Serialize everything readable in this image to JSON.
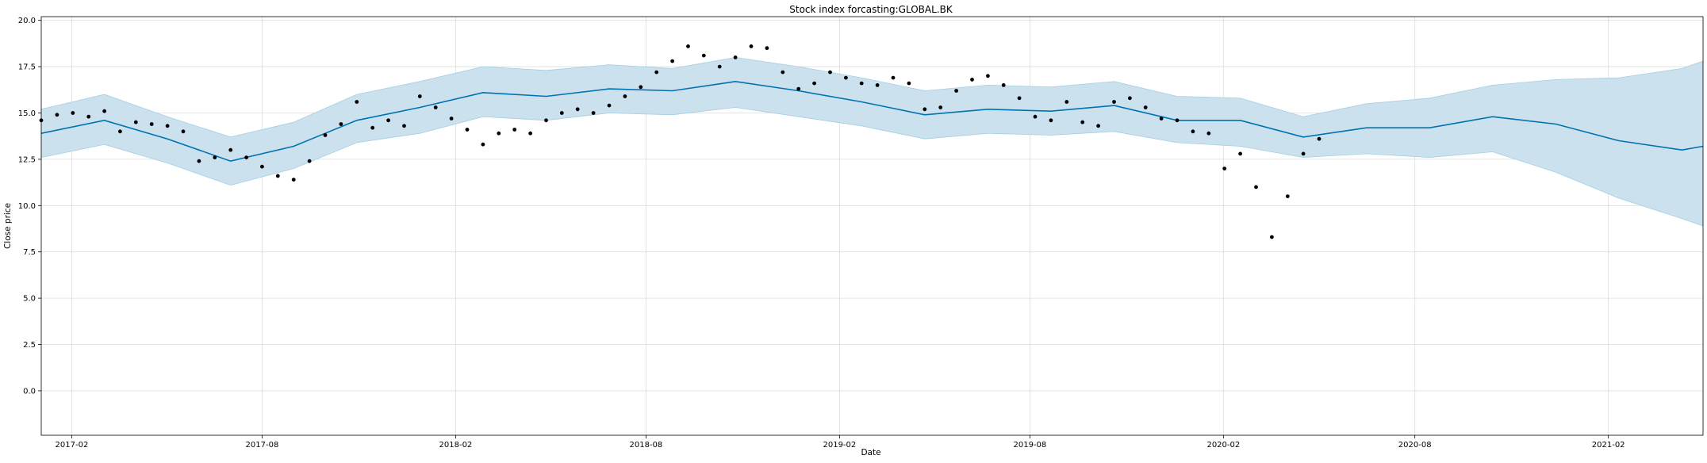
{
  "chart_data": {
    "type": "line",
    "title": "Stock index forcasting:GLOBAL.BK",
    "xlabel": "Date",
    "ylabel": "Close price",
    "x_range": [
      "2017-01-03",
      "2021-05-02"
    ],
    "ylim": [
      -2.4,
      20.2
    ],
    "grid": true,
    "x_ticks": [
      "2017-02",
      "2017-08",
      "2018-02",
      "2018-08",
      "2019-02",
      "2019-08",
      "2020-02",
      "2020-08",
      "2021-02"
    ],
    "y_ticks": [
      "0.0",
      "2.5",
      "5.0",
      "7.5",
      "10.0",
      "12.5",
      "15.0",
      "17.5",
      "20.0"
    ],
    "colors": {
      "actual": "#000000",
      "forecast": "#0072B2",
      "interval": "#cbe2ee",
      "interval_edge": "#a6cde4",
      "grid": "#dddddd"
    },
    "series": [
      {
        "kind": "actual_points",
        "x": [
          "2017-01-03",
          "2017-01-18",
          "2017-02-02",
          "2017-02-17",
          "2017-03-04",
          "2017-03-19",
          "2017-04-03",
          "2017-04-18",
          "2017-05-03",
          "2017-05-18",
          "2017-06-02",
          "2017-06-17",
          "2017-07-02",
          "2017-07-17",
          "2017-08-01",
          "2017-08-16",
          "2017-08-31",
          "2017-09-15",
          "2017-09-30",
          "2017-10-15",
          "2017-10-30",
          "2017-11-14",
          "2017-11-29",
          "2017-12-14",
          "2017-12-29",
          "2018-01-13",
          "2018-01-28",
          "2018-02-12",
          "2018-02-27",
          "2018-03-14",
          "2018-03-29",
          "2018-04-13",
          "2018-04-28",
          "2018-05-13",
          "2018-05-28",
          "2018-06-12",
          "2018-06-27",
          "2018-07-12",
          "2018-07-27",
          "2018-08-11",
          "2018-08-26",
          "2018-09-10",
          "2018-09-25",
          "2018-10-10",
          "2018-10-25",
          "2018-11-09",
          "2018-11-24",
          "2018-12-09",
          "2018-12-24",
          "2019-01-08",
          "2019-01-23",
          "2019-02-07",
          "2019-02-22",
          "2019-03-09",
          "2019-03-24",
          "2019-04-08",
          "2019-04-23",
          "2019-05-08",
          "2019-05-23",
          "2019-06-07",
          "2019-06-22",
          "2019-07-07",
          "2019-07-22",
          "2019-08-06",
          "2019-08-21",
          "2019-09-05",
          "2019-09-20",
          "2019-10-05",
          "2019-10-20",
          "2019-11-04",
          "2019-11-19",
          "2019-12-04",
          "2019-12-19",
          "2020-01-03",
          "2020-01-18",
          "2020-02-02",
          "2020-02-17",
          "2020-03-03",
          "2020-03-18",
          "2020-04-02",
          "2020-04-17",
          "2020-05-02"
        ],
        "y": [
          14.6,
          14.9,
          15.0,
          14.8,
          15.1,
          14.0,
          14.5,
          14.4,
          14.3,
          14.0,
          12.4,
          12.6,
          13.0,
          12.6,
          12.1,
          11.6,
          11.4,
          12.4,
          13.8,
          14.4,
          15.6,
          14.2,
          14.6,
          14.3,
          15.9,
          15.3,
          14.7,
          14.1,
          13.3,
          13.9,
          14.1,
          13.9,
          14.6,
          15.0,
          15.2,
          15.0,
          15.4,
          15.9,
          16.4,
          17.2,
          17.8,
          18.6,
          18.1,
          17.5,
          18.0,
          18.6,
          18.5,
          17.2,
          16.3,
          16.6,
          17.2,
          16.9,
          16.6,
          16.5,
          16.9,
          16.6,
          15.2,
          15.3,
          16.2,
          16.8,
          17.0,
          16.5,
          15.8,
          14.8,
          14.6,
          15.6,
          14.5,
          14.3,
          15.6,
          15.8,
          15.3,
          14.7,
          14.6,
          14.0,
          13.9,
          12.0,
          12.8,
          11.0,
          8.3,
          10.5,
          12.8,
          13.6
        ]
      },
      {
        "kind": "forecast_line",
        "x": [
          "2017-01-03",
          "2017-03-04",
          "2017-05-03",
          "2017-07-02",
          "2017-08-31",
          "2017-10-30",
          "2017-12-29",
          "2018-02-27",
          "2018-04-28",
          "2018-06-27",
          "2018-08-26",
          "2018-10-25",
          "2018-12-24",
          "2019-02-22",
          "2019-04-23",
          "2019-06-22",
          "2019-08-21",
          "2019-10-20",
          "2019-12-19",
          "2020-02-17",
          "2020-04-17",
          "2020-06-16",
          "2020-08-15",
          "2020-10-14",
          "2020-12-13",
          "2021-02-11",
          "2021-04-12",
          "2021-05-02"
        ],
        "y": [
          13.9,
          14.6,
          13.6,
          12.4,
          13.2,
          14.6,
          15.3,
          16.1,
          15.9,
          16.3,
          16.2,
          16.7,
          16.2,
          15.6,
          14.9,
          15.2,
          15.1,
          15.4,
          14.6,
          14.6,
          13.7,
          14.2,
          14.2,
          14.8,
          14.4,
          13.5,
          13.0,
          13.2
        ]
      },
      {
        "kind": "uncertainty_band",
        "x": [
          "2017-01-03",
          "2017-03-04",
          "2017-05-03",
          "2017-07-02",
          "2017-08-31",
          "2017-10-30",
          "2017-12-29",
          "2018-02-27",
          "2018-04-28",
          "2018-06-27",
          "2018-08-26",
          "2018-10-25",
          "2018-12-24",
          "2019-02-22",
          "2019-04-23",
          "2019-06-22",
          "2019-08-21",
          "2019-10-20",
          "2019-12-19",
          "2020-02-17",
          "2020-04-17",
          "2020-06-16",
          "2020-08-15",
          "2020-10-14",
          "2020-12-13",
          "2021-02-11",
          "2021-04-12",
          "2021-05-02"
        ],
        "lower": [
          12.6,
          13.3,
          12.3,
          11.1,
          12.0,
          13.4,
          13.9,
          14.8,
          14.6,
          15.0,
          14.9,
          15.3,
          14.8,
          14.3,
          13.6,
          13.9,
          13.8,
          14.0,
          13.4,
          13.2,
          12.6,
          12.8,
          12.6,
          12.9,
          11.8,
          10.4,
          9.3,
          8.9
        ],
        "upper": [
          15.2,
          16.0,
          14.8,
          13.7,
          14.5,
          16.0,
          16.7,
          17.5,
          17.3,
          17.6,
          17.4,
          18.0,
          17.5,
          16.9,
          16.2,
          16.5,
          16.4,
          16.7,
          15.9,
          15.8,
          14.8,
          15.5,
          15.8,
          16.5,
          16.8,
          16.9,
          17.4,
          17.8
        ]
      }
    ]
  }
}
